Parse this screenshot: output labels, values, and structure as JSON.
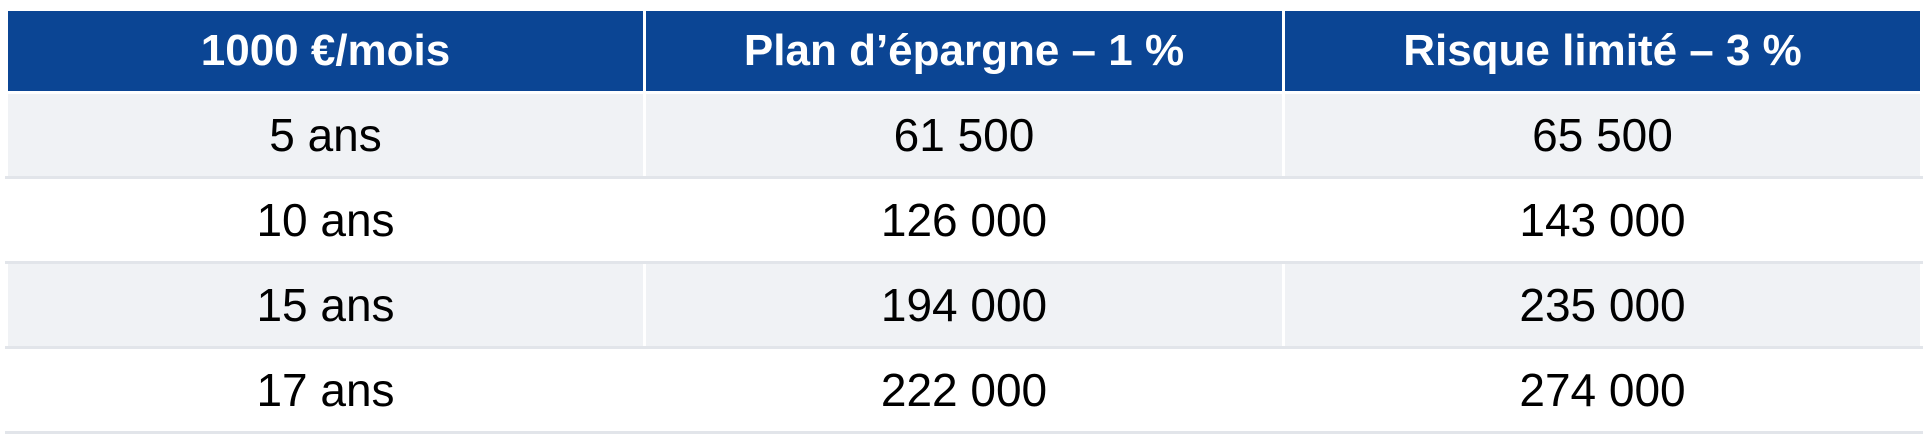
{
  "table": {
    "columns": [
      "1000 €/mois",
      "Plan d’épargne – 1 %",
      "Risque limité – 3 %"
    ],
    "rows": [
      [
        "5 ans",
        "61 500",
        "65 500"
      ],
      [
        "10 ans",
        "126 000",
        "143 000"
      ],
      [
        "15 ans",
        "194 000",
        "235 000"
      ],
      [
        "17 ans",
        "222 000",
        "274 000"
      ]
    ]
  },
  "colors": {
    "header_bg": "#0b4594",
    "header_text": "#ffffff",
    "row_alt_bg": "#f0f2f5",
    "row_bg": "#ffffff"
  }
}
